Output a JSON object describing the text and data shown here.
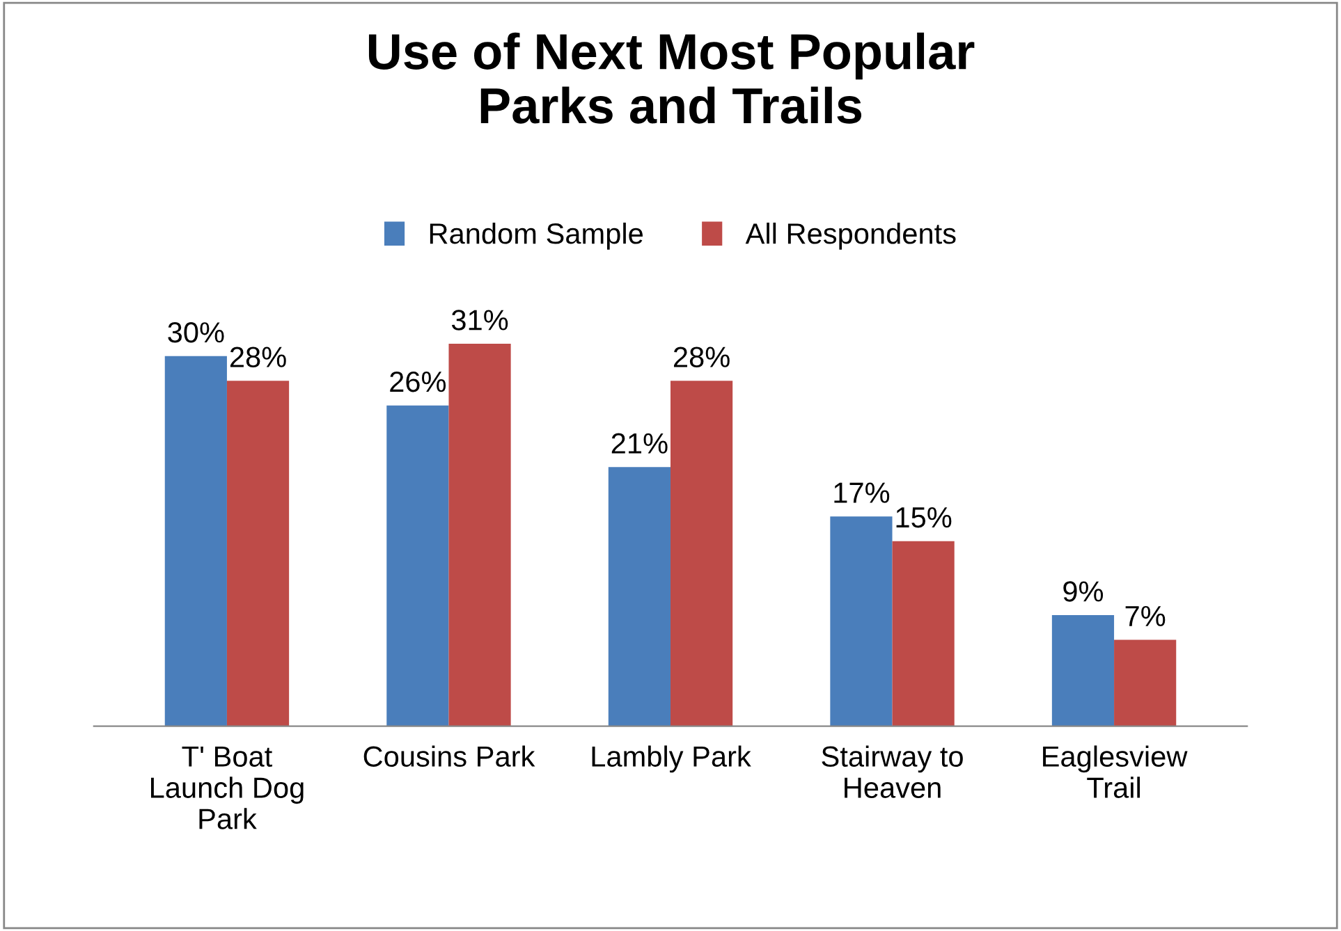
{
  "chart_data": {
    "type": "bar",
    "title": "Use of Next Most Popular\nParks and Trails",
    "categories": [
      "T' Boat\nLaunch Dog\nPark",
      "Cousins Park",
      "Lambly Park",
      "Stairway to\nHeaven",
      "Eaglesview\nTrail"
    ],
    "series": [
      {
        "name": "Random Sample",
        "color": "#4a7ebb",
        "values": [
          30,
          26,
          21,
          17,
          9
        ],
        "value_labels": [
          "30%",
          "26%",
          "21%",
          "17%",
          "9%"
        ]
      },
      {
        "name": "All Respondents",
        "color": "#be4b48",
        "values": [
          28,
          31,
          28,
          15,
          7
        ],
        "value_labels": [
          "28%",
          "31%",
          "28%",
          "15%",
          "7%"
        ]
      }
    ],
    "legend": "top",
    "grid": false
  }
}
